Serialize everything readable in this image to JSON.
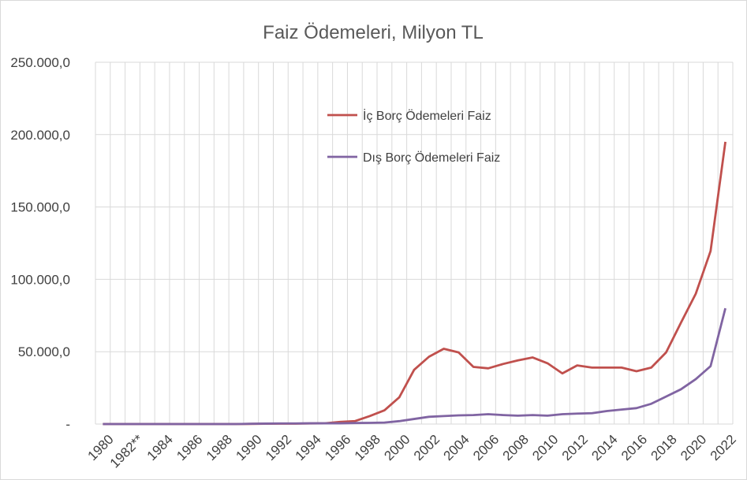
{
  "chart_data": {
    "type": "line",
    "title": "Faiz Ödemeleri, Milyon TL",
    "xlabel": "",
    "ylabel": "",
    "ylim": [
      0,
      250000
    ],
    "yticks": [
      0,
      50000,
      100000,
      150000,
      200000,
      250000
    ],
    "ytick_labels": [
      "-",
      "50.000,0",
      "100.000,0",
      "150.000,0",
      "200.000,0",
      "250.000,0"
    ],
    "x": [
      1980,
      1981,
      1982,
      1983,
      1984,
      1985,
      1986,
      1987,
      1988,
      1989,
      1990,
      1991,
      1992,
      1993,
      1994,
      1995,
      1996,
      1997,
      1998,
      1999,
      2000,
      2001,
      2002,
      2003,
      2004,
      2005,
      2006,
      2007,
      2008,
      2009,
      2010,
      2011,
      2012,
      2013,
      2014,
      2015,
      2016,
      2017,
      2018,
      2019,
      2020,
      2021,
      2022
    ],
    "xtick_labels": [
      "1980",
      "1982**",
      "1984",
      "1986",
      "1988",
      "1990",
      "1992",
      "1994",
      "1996",
      "1998",
      "2000",
      "2002",
      "2004",
      "2006",
      "2008",
      "2010",
      "2012",
      "2014",
      "2016",
      "2018",
      "2020",
      "2022"
    ],
    "grid": true,
    "legend_position": "top-left",
    "series": [
      {
        "name": "İç Borç Ödemeleri  Faiz",
        "color": "#c0504d",
        "values": [
          0,
          0,
          0,
          0,
          0,
          0,
          0,
          0,
          0,
          0,
          100,
          200,
          300,
          300,
          400,
          500,
          1500,
          2000,
          5500,
          9500,
          18500,
          37500,
          46500,
          52000,
          49500,
          39500,
          38500,
          41500,
          44000,
          46000,
          42000,
          35000,
          40500,
          39000,
          39000,
          39000,
          36500,
          39000,
          49500,
          70000,
          90000,
          119500,
          195000
        ]
      },
      {
        "name": "Dış Borç Ödemeleri Faiz",
        "color": "#8064a2",
        "values": [
          0,
          0,
          0,
          0,
          0,
          0,
          0,
          0,
          0,
          0,
          200,
          300,
          400,
          400,
          500,
          500,
          500,
          700,
          800,
          1000,
          2000,
          3500,
          5000,
          5500,
          6000,
          6200,
          6800,
          6200,
          5800,
          6200,
          5800,
          6800,
          7200,
          7500,
          9000,
          10000,
          11000,
          14000,
          19000,
          24000,
          31000,
          40000,
          80000
        ]
      }
    ]
  }
}
